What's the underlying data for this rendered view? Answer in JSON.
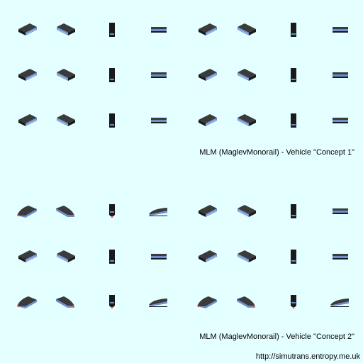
{
  "sheet": {
    "caption_1": "MLM (MaglevMonorail) - Vehicle \"Concept 1\"",
    "caption_2": "MLM (MaglevMonorail) - Vehicle \"Concept 2\"",
    "footer_url": "http://simutrans.entropy.me.uk"
  },
  "colors": {
    "background": "#e4ffff",
    "body_dark": "#1a1a1a",
    "body_mid": "#3b3b3b",
    "stripe_blue": "#6a8fd0",
    "stripe_light": "#a9c2f0",
    "headlight": "#ff5a3a"
  },
  "blocks": [
    {
      "name": "concept-1",
      "rows": [
        [
          "box-sw",
          "box-se",
          "tall-ns",
          "flat-ew",
          "box-sw",
          "box-se",
          "tall-ns",
          "flat-ew"
        ],
        [
          "box-sw",
          "box-se",
          "tall-ns",
          "flat-ew",
          "box-sw",
          "box-se",
          "tall-ns",
          "flat-ew"
        ],
        [
          "box-sw",
          "box-se",
          "tall-ns",
          "flat-ew",
          "box-sw",
          "box-se",
          "tall-ns",
          "flat-ew"
        ]
      ]
    },
    {
      "name": "concept-2",
      "rows": [
        [
          "nose-sw",
          "nose-se",
          "nose-ns",
          "nose-ew",
          "box-sw",
          "box-se",
          "tall-ns",
          "flat-ew"
        ],
        [
          "box-sw",
          "box-se",
          "tall-ns",
          "flat-ew",
          "box-sw",
          "box-se",
          "tall-ns",
          "flat-ew"
        ],
        [
          "nose-sw",
          "nose-se",
          "nose-ns",
          "nose-ew",
          "nose-sw",
          "nose-se",
          "nose-ns",
          "nose-ew"
        ]
      ]
    }
  ]
}
